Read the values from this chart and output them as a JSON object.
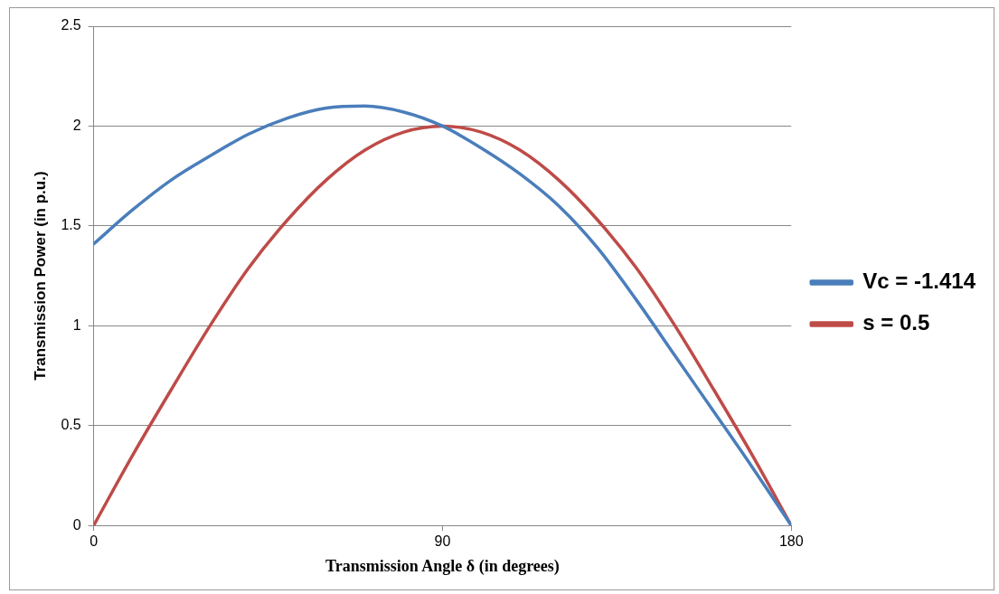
{
  "chart_data": {
    "type": "line",
    "xlabel": "Transmission Angle δ (in degrees)",
    "ylabel": "Transmission Power (in p.u.)",
    "x": [
      0,
      10,
      20,
      30,
      40,
      50,
      60,
      70,
      80,
      90,
      100,
      110,
      120,
      130,
      140,
      150,
      160,
      170,
      180
    ],
    "series": [
      {
        "name": "Vc = -1.414",
        "color": "#4a7ebb",
        "values": [
          1.41,
          1.58,
          1.73,
          1.85,
          1.96,
          2.04,
          2.09,
          2.1,
          2.07,
          2.0,
          1.89,
          1.76,
          1.6,
          1.39,
          1.13,
          0.85,
          0.57,
          0.29,
          0
        ]
      },
      {
        "name": "s = 0.5",
        "color": "#be4b48",
        "values": [
          0,
          0.35,
          0.68,
          1.0,
          1.29,
          1.53,
          1.73,
          1.88,
          1.97,
          2.0,
          1.97,
          1.88,
          1.73,
          1.53,
          1.29,
          1.0,
          0.68,
          0.35,
          0
        ]
      }
    ],
    "xlim": [
      0,
      180
    ],
    "xticks": [
      0,
      90,
      180
    ],
    "ylim": [
      0,
      2.5
    ],
    "yticks": [
      0,
      0.5,
      1,
      1.5,
      2,
      2.5
    ],
    "grid": "y",
    "legend": "right",
    "marker": "none",
    "line_style": "solid"
  }
}
